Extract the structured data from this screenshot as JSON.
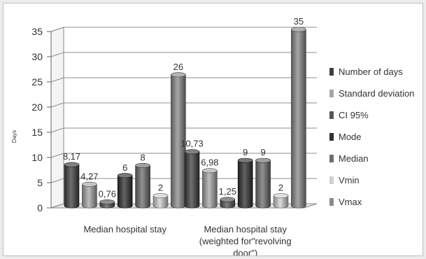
{
  "chart_data": {
    "type": "bar",
    "title": "",
    "xlabel": "",
    "ylabel": "Days",
    "ylim": [
      0,
      35
    ],
    "yticks": [
      0,
      5,
      10,
      15,
      20,
      25,
      30,
      35
    ],
    "categories": [
      [
        "Median hospital stay"
      ],
      [
        "Median hospital stay",
        "(weighted for\"revolving",
        "door\")"
      ]
    ],
    "series": [
      {
        "name": "Number of days",
        "values": [
          8.17,
          10.73
        ],
        "labels": [
          "8,17",
          "10,73"
        ],
        "color": "#3f3f3f"
      },
      {
        "name": "Standard deviation",
        "values": [
          4.27,
          6.98
        ],
        "labels": [
          "4,27",
          "6,98"
        ],
        "color": "#a6a6a6"
      },
      {
        "name": "CI 95%",
        "values": [
          0.76,
          1.25
        ],
        "labels": [
          "0,76",
          "1,25"
        ],
        "color": "#555555"
      },
      {
        "name": "Mode",
        "values": [
          6,
          9
        ],
        "labels": [
          "6",
          "9"
        ],
        "color": "#2f2f2f"
      },
      {
        "name": "Median",
        "values": [
          8,
          9
        ],
        "labels": [
          "8",
          "9"
        ],
        "color": "#6e6e6e"
      },
      {
        "name": "Vmin",
        "values": [
          2,
          2
        ],
        "labels": [
          "2",
          "2"
        ],
        "color": "#d0d0d0"
      },
      {
        "name": "Vmax",
        "values": [
          26,
          35
        ],
        "labels": [
          "26",
          "35"
        ],
        "color": "#8a8a8a"
      }
    ],
    "grid": true,
    "legend_position": "right"
  }
}
